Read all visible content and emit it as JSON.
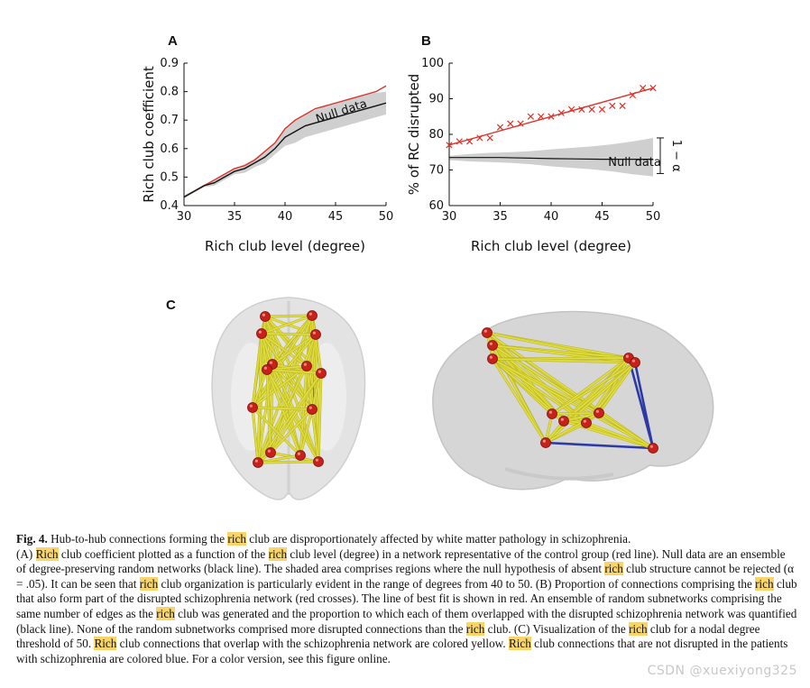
{
  "panel_letters": {
    "a": "A",
    "b": "B",
    "c": "C"
  },
  "chart_data": [
    {
      "type": "line",
      "panel": "A",
      "ylabel": "Rich club coefficient",
      "xlabel": "Rich club level (degree)",
      "xlim": [
        30,
        50
      ],
      "ylim": [
        0.4,
        0.9
      ],
      "xticks": [
        "30",
        "35",
        "40",
        "45",
        "50"
      ],
      "yticks": [
        "0.4",
        "0.5",
        "0.6",
        "0.7",
        "0.8",
        "0.9"
      ],
      "annotation": "Null data",
      "series": [
        {
          "name": "Control group (red)",
          "color": "#d9342b",
          "x": [
            30,
            31,
            32,
            33,
            34,
            35,
            36,
            37,
            38,
            39,
            40,
            41,
            42,
            43,
            44,
            45,
            46,
            47,
            48,
            49,
            50
          ],
          "y": [
            0.43,
            0.45,
            0.47,
            0.49,
            0.51,
            0.53,
            0.54,
            0.56,
            0.59,
            0.62,
            0.67,
            0.7,
            0.72,
            0.74,
            0.75,
            0.76,
            0.77,
            0.78,
            0.79,
            0.8,
            0.82
          ]
        },
        {
          "name": "Null data (black)",
          "color": "#111111",
          "x": [
            30,
            31,
            32,
            33,
            34,
            35,
            36,
            37,
            38,
            39,
            40,
            41,
            42,
            43,
            44,
            45,
            46,
            47,
            48,
            49,
            50
          ],
          "y": [
            0.43,
            0.45,
            0.47,
            0.48,
            0.5,
            0.52,
            0.53,
            0.55,
            0.57,
            0.6,
            0.64,
            0.66,
            0.68,
            0.69,
            0.7,
            0.71,
            0.72,
            0.73,
            0.74,
            0.75,
            0.76
          ]
        }
      ],
      "band": {
        "x": [
          30,
          31,
          32,
          33,
          34,
          35,
          36,
          37,
          38,
          39,
          40,
          41,
          42,
          43,
          44,
          45,
          46,
          47,
          48,
          49,
          50
        ],
        "upper": [
          0.435,
          0.455,
          0.475,
          0.49,
          0.51,
          0.53,
          0.545,
          0.565,
          0.59,
          0.62,
          0.67,
          0.7,
          0.72,
          0.735,
          0.75,
          0.76,
          0.77,
          0.78,
          0.79,
          0.795,
          0.8
        ],
        "lower": [
          0.425,
          0.445,
          0.465,
          0.47,
          0.49,
          0.51,
          0.515,
          0.535,
          0.55,
          0.58,
          0.61,
          0.62,
          0.64,
          0.65,
          0.66,
          0.67,
          0.68,
          0.69,
          0.7,
          0.71,
          0.72
        ]
      }
    },
    {
      "type": "scatter",
      "panel": "B",
      "ylabel": "% of RC disrupted",
      "xlabel": "Rich club level (degree)",
      "xlim": [
        30,
        50
      ],
      "ylim": [
        60,
        100
      ],
      "xticks": [
        "30",
        "35",
        "40",
        "45",
        "50"
      ],
      "yticks": [
        "60",
        "70",
        "80",
        "90",
        "100"
      ],
      "annotation": "Null data",
      "alpha_label": "1 − α",
      "crosses": {
        "name": "Disrupted schizophrenia network (red crosses)",
        "color": "#d9342b",
        "x": [
          30,
          31,
          32,
          33,
          34,
          35,
          36,
          37,
          38,
          39,
          40,
          41,
          42,
          43,
          44,
          45,
          46,
          47,
          48,
          49,
          50
        ],
        "y": [
          77,
          78,
          78,
          79,
          79,
          82,
          83,
          83,
          85,
          85,
          85,
          86,
          87,
          87,
          87,
          87,
          88,
          88,
          91,
          93,
          93
        ]
      },
      "fit": {
        "name": "Line of best fit (red)",
        "color": "#d9342b",
        "x": [
          30,
          50
        ],
        "y": [
          77,
          93
        ]
      },
      "null_line": {
        "name": "Random subnetworks (black line)",
        "color": "#111111",
        "x": [
          30,
          35,
          40,
          45,
          50
        ],
        "y": [
          73.5,
          73.5,
          73.2,
          73.0,
          73.0
        ]
      },
      "band": {
        "x": [
          30,
          32,
          34,
          36,
          38,
          40,
          42,
          44,
          46,
          48,
          50
        ],
        "upper": [
          74,
          74.5,
          74.8,
          75,
          75.3,
          75.8,
          76.2,
          76.6,
          77.2,
          78,
          79
        ],
        "lower": [
          72.8,
          72.4,
          72.2,
          72,
          71.6,
          71,
          70.6,
          70.2,
          69.6,
          68.8,
          68.2
        ]
      },
      "alpha_bracket": [
        69,
        79
      ]
    }
  ],
  "figure_c": {
    "label": "C",
    "node_color": "#c8211b",
    "edge_yellow": "#e2df3c",
    "edge_blue": "#2d3aa6"
  },
  "caption": {
    "fig_label": "Fig. 4.",
    "highlight_word": "rich",
    "highlight_word_cap": "Rich",
    "s1a": " Hub-to-hub connections forming the ",
    "s1b": " club are disproportionately affected by white matter pathology in schizophrenia.",
    "s2a": "(A) ",
    "s2b": " club coefficient plotted as a function of the ",
    "s2c": " club level (degree) in a network representative of the control group (red line). Null data are an ensemble of degree-preserving random networks (black line). The shaded area comprises regions where the null hypothesis of absent ",
    "s2d": " club structure cannot be rejected (α = .05). It can be seen that ",
    "s2e": " club organization is particularly evident in the range of degrees from 40 to 50. (B) Proportion of connections comprising the ",
    "s2f": " club that also form part of the disrupted schizophrenia network (red crosses). The line of best fit is shown in red. An ensemble of random subnetworks comprising the same number of edges as the ",
    "s2g": " club was generated and the proportion to which each of them overlapped with the disrupted schizophrenia network was quantified (black line). None of the random subnetworks comprised more disrupted connections than the ",
    "s2h": " club. (C) Visualization of the ",
    "s2i": " club for a nodal degree threshold of 50. ",
    "s2j": " club connections that overlap with the schizophrenia network are colored yellow. ",
    "s2k": " club connections that are not disrupted in the patients with schizophrenia are colored blue. For a color version, see this figure online."
  },
  "watermark": "CSDN @xuexiyong325"
}
